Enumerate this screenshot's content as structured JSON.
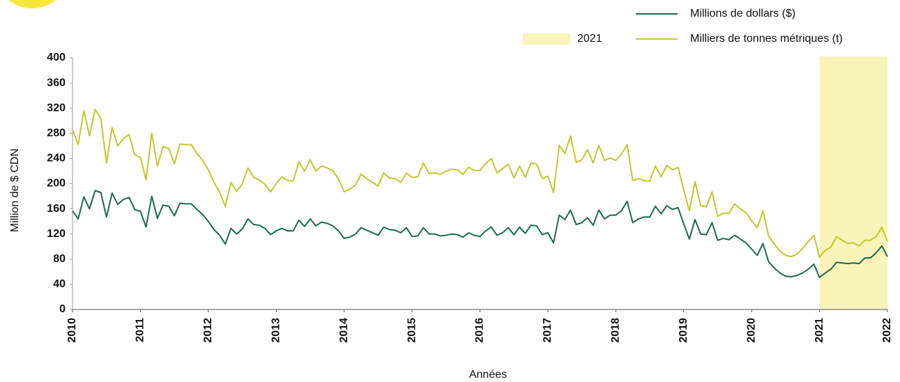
{
  "chart_data": {
    "type": "line",
    "y_label": "Million de $ CDN",
    "x_label": "Années",
    "xlim": [
      2010,
      2022
    ],
    "xticks": [
      2010,
      2011,
      2012,
      2013,
      2014,
      2015,
      2016,
      2017,
      2018,
      2019,
      2020,
      2021,
      2022
    ],
    "ylim": [
      0,
      400
    ],
    "yticks": [
      0,
      40,
      80,
      120,
      160,
      200,
      240,
      280,
      320,
      360,
      400
    ],
    "grid": false,
    "legend": "top-right",
    "highlight": {
      "label": "2021",
      "xlim": [
        2021,
        2022
      ],
      "color": "#f9f4b9"
    },
    "x": [
      2010,
      2010.083,
      2010.167,
      2010.25,
      2010.333,
      2010.417,
      2010.5,
      2010.583,
      2010.667,
      2010.75,
      2010.833,
      2010.917,
      2011,
      2011.083,
      2011.167,
      2011.25,
      2011.333,
      2011.417,
      2011.5,
      2011.583,
      2011.667,
      2011.75,
      2011.833,
      2011.917,
      2012,
      2012.083,
      2012.167,
      2012.25,
      2012.333,
      2012.417,
      2012.5,
      2012.583,
      2012.667,
      2012.75,
      2012.833,
      2012.917,
      2013,
      2013.083,
      2013.167,
      2013.25,
      2013.333,
      2013.417,
      2013.5,
      2013.583,
      2013.667,
      2013.75,
      2013.833,
      2013.917,
      2014,
      2014.083,
      2014.167,
      2014.25,
      2014.333,
      2014.417,
      2014.5,
      2014.583,
      2014.667,
      2014.75,
      2014.833,
      2014.917,
      2015,
      2015.083,
      2015.167,
      2015.25,
      2015.333,
      2015.417,
      2015.5,
      2015.583,
      2015.667,
      2015.75,
      2015.833,
      2015.917,
      2016,
      2016.083,
      2016.167,
      2016.25,
      2016.333,
      2016.417,
      2016.5,
      2016.583,
      2016.667,
      2016.75,
      2016.833,
      2016.917,
      2017,
      2017.083,
      2017.167,
      2017.25,
      2017.333,
      2017.417,
      2017.5,
      2017.583,
      2017.667,
      2017.75,
      2017.833,
      2017.917,
      2018,
      2018.083,
      2018.167,
      2018.25,
      2018.333,
      2018.417,
      2018.5,
      2018.583,
      2018.667,
      2018.75,
      2018.833,
      2018.917,
      2019,
      2019.083,
      2019.167,
      2019.25,
      2019.333,
      2019.417,
      2019.5,
      2019.583,
      2019.667,
      2019.75,
      2019.833,
      2019.917,
      2020,
      2020.083,
      2020.167,
      2020.25,
      2020.333,
      2020.417,
      2020.5,
      2020.583,
      2020.667,
      2020.75,
      2020.833,
      2020.917,
      2021,
      2021.083,
      2021.167,
      2021.25,
      2021.333,
      2021.417,
      2021.5,
      2021.583,
      2021.667,
      2021.75,
      2021.833,
      2021.917,
      2022
    ],
    "series": [
      {
        "name": "Millions de dollars ($)",
        "color": "#1b6b4e",
        "values": [
          157,
          144,
          179,
          160,
          189,
          186,
          147,
          185,
          167,
          175,
          178,
          159,
          156,
          131,
          180,
          145,
          166,
          164,
          149,
          169,
          168,
          168,
          159,
          151,
          140,
          127,
          118,
          104,
          129,
          120,
          128,
          144,
          135,
          134,
          129,
          119,
          125,
          129,
          125,
          125,
          142,
          132,
          144,
          133,
          139,
          137,
          133,
          125,
          113,
          115,
          120,
          130,
          126,
          122,
          118,
          131,
          127,
          126,
          122,
          130,
          116,
          117,
          130,
          120,
          120,
          117,
          118,
          120,
          119,
          115,
          122,
          118,
          116,
          125,
          131,
          118,
          122,
          130,
          119,
          131,
          121,
          134,
          133,
          119,
          122,
          106,
          150,
          143,
          158,
          135,
          138,
          146,
          134,
          158,
          144,
          150,
          150,
          157,
          172,
          138,
          144,
          147,
          147,
          164,
          152,
          165,
          159,
          162,
          136,
          112,
          143,
          120,
          119,
          138,
          110,
          113,
          111,
          118,
          112,
          106,
          96,
          86,
          105,
          76,
          66,
          58,
          53,
          52,
          54,
          58,
          64,
          72,
          51,
          58,
          64,
          75,
          74,
          73,
          74,
          73,
          82,
          82,
          90,
          101,
          84
        ]
      },
      {
        "name": "Milliers de tonnes métriques (t)",
        "color": "#c4c72b",
        "values": [
          286,
          262,
          316,
          276,
          318,
          304,
          233,
          289,
          260,
          272,
          278,
          246,
          242,
          206,
          280,
          228,
          259,
          256,
          232,
          263,
          262,
          262,
          248,
          237,
          222,
          202,
          186,
          164,
          202,
          188,
          200,
          225,
          210,
          206,
          199,
          187,
          200,
          211,
          205,
          204,
          235,
          220,
          238,
          220,
          228,
          225,
          221,
          207,
          187,
          191,
          198,
          215,
          208,
          202,
          196,
          217,
          209,
          208,
          202,
          217,
          210,
          211,
          233,
          216,
          217,
          215,
          220,
          223,
          222,
          215,
          226,
          221,
          221,
          232,
          240,
          217,
          224,
          231,
          209,
          228,
          210,
          233,
          231,
          208,
          212,
          186,
          261,
          248,
          276,
          234,
          238,
          254,
          233,
          261,
          237,
          241,
          237,
          247,
          262,
          205,
          208,
          205,
          204,
          228,
          211,
          229,
          222,
          226,
          190,
          157,
          203,
          165,
          163,
          187,
          148,
          153,
          153,
          168,
          160,
          154,
          141,
          130,
          157,
          117,
          104,
          93,
          86,
          84,
          88,
          97,
          108,
          118,
          83,
          94,
          99,
          116,
          110,
          105,
          106,
          101,
          110,
          110,
          116,
          131,
          108
        ]
      }
    ]
  }
}
